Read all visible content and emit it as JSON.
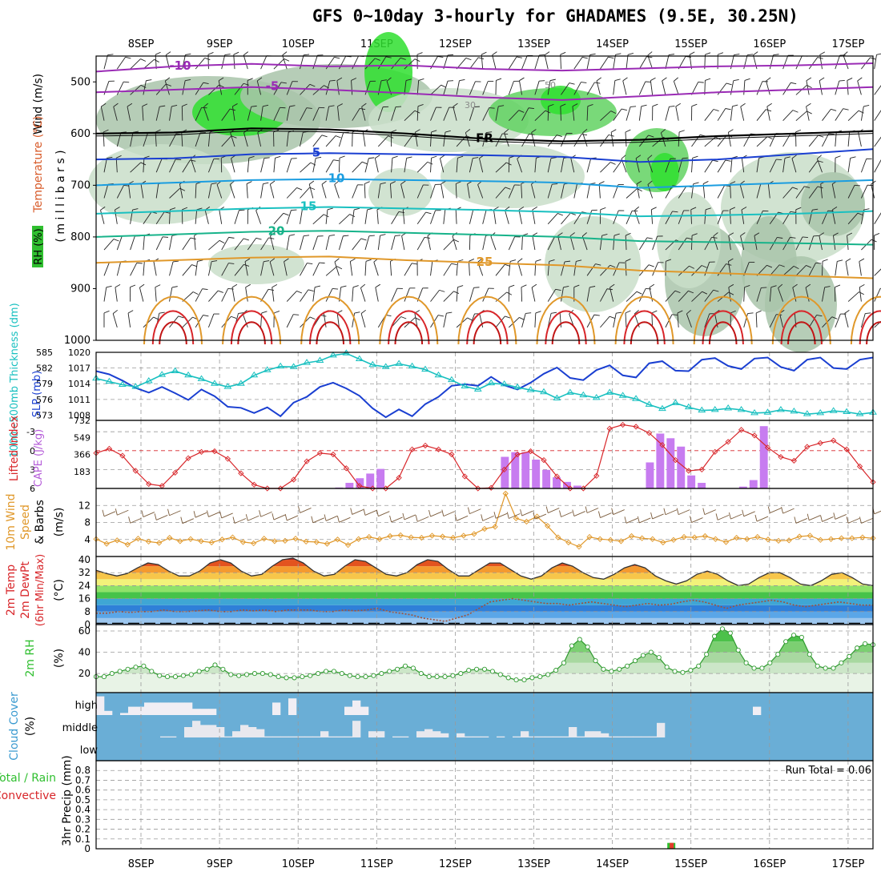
{
  "title": "GFS 0~10day 3-hourly for GHADAMES (9.5E, 30.25N)",
  "dates": [
    "8SEP",
    "9SEP",
    "10SEP",
    "11SEP",
    "12SEP",
    "13SEP",
    "14SEP",
    "15SEP",
    "16SEP",
    "17SEP"
  ],
  "colors": {
    "purple": "#9a2bb5",
    "blue": "#1a3fd1",
    "lightblue": "#1b9de0",
    "cyan": "#19c0c0",
    "teal": "#17b38a",
    "orange": "#e0982a",
    "red": "#d8262a",
    "green": "#2fbf2f",
    "cloud_bg": "#6aaed6",
    "cloud_fill": "#f1eef4",
    "convective": "#e33b2b"
  },
  "chart_data": [
    {
      "panel": "upper-air",
      "type": "contour",
      "ylabel_parts": [
        "RH (%)",
        "Temperature (°C)",
        "Wind (m/s)"
      ],
      "yaxis_label": "( m i l l i b a r s )",
      "ylim": [
        450,
        1000
      ],
      "yticks": [
        "500",
        "600",
        "700",
        "800",
        "900",
        "1000"
      ],
      "isotherms": [
        {
          "label": "-10",
          "level_mb": [
            480,
            470,
            465,
            470,
            468,
            475,
            478,
            474,
            470,
            468,
            464
          ]
        },
        {
          "label": "-5",
          "level_mb": [
            520,
            515,
            510,
            515,
            522,
            530,
            535,
            528,
            520,
            515,
            510
          ]
        },
        {
          "label": "FR",
          "level_mb": [
            600,
            598,
            590,
            592,
            600,
            610,
            615,
            612,
            605,
            600,
            595
          ]
        },
        {
          "label": "5",
          "level_mb": [
            650,
            648,
            640,
            638,
            640,
            642,
            645,
            655,
            650,
            640,
            630
          ]
        },
        {
          "label": "10",
          "level_mb": [
            700,
            695,
            690,
            688,
            690,
            692,
            695,
            705,
            700,
            695,
            690
          ]
        },
        {
          "label": "15",
          "level_mb": [
            755,
            750,
            745,
            742,
            745,
            748,
            752,
            760,
            758,
            755,
            750
          ]
        },
        {
          "label": "20",
          "level_mb": [
            800,
            795,
            790,
            788,
            792,
            796,
            800,
            808,
            810,
            812,
            815
          ]
        },
        {
          "label": "25",
          "level_mb": [
            850,
            845,
            840,
            838,
            845,
            850,
            855,
            865,
            870,
            875,
            880
          ]
        }
      ],
      "rh_labels": [
        "30",
        "50"
      ]
    },
    {
      "panel": "slp-thickness",
      "type": "line",
      "left_ylabel": "1000~500mb Thickness (dm)",
      "right_ylabel": "SLP (mb)",
      "thickness_ticks": [
        "585",
        "582",
        "579",
        "576",
        "573"
      ],
      "slp_ticks": [
        "1020",
        "1017",
        "1014",
        "1011",
        "1008"
      ],
      "series": [
        {
          "name": "SLP",
          "values": [
            1016.4,
            1015.8,
            1014.6,
            1013.2,
            1012.3,
            1013.4,
            1012.2,
            1010.9,
            1012.9,
            1011.6,
            1009.6,
            1009.4,
            1008.4,
            1009.5,
            1007.8,
            1010.4,
            1011.5,
            1013.4,
            1014.2,
            1013.1,
            1011.7,
            1009.3,
            1007.6,
            1009.1,
            1007.8,
            1010.1,
            1011.5,
            1013.6,
            1013.9,
            1013.6,
            1015.3,
            1013.7,
            1012.9,
            1014.2,
            1015.9,
            1017.1,
            1015.1,
            1014.7,
            1016.6,
            1017.5,
            1015.6,
            1015.2,
            1017.9,
            1018.3,
            1016.5,
            1016.4,
            1018.6,
            1018.9,
            1017.4,
            1016.8,
            1018.8,
            1019.0,
            1017.2,
            1016.5,
            1018.6,
            1019.0,
            1017.0,
            1016.8,
            1018.6,
            1019.0
          ]
        },
        {
          "name": "Thickness",
          "values": [
            580.0,
            579.4,
            578.8,
            578.4,
            579.5,
            580.7,
            581.4,
            580.6,
            579.9,
            579.0,
            578.4,
            579.0,
            580.6,
            581.6,
            582.3,
            582.2,
            583.0,
            583.4,
            584.4,
            584.8,
            583.7,
            582.6,
            582.2,
            582.8,
            582.3,
            581.7,
            580.6,
            579.7,
            578.5,
            577.9,
            579.1,
            578.9,
            578.3,
            577.8,
            577.4,
            576.2,
            577.3,
            576.8,
            576.3,
            577.3,
            576.7,
            576.1,
            575.0,
            574.2,
            575.3,
            574.5,
            573.9,
            574.0,
            574.3,
            574.0,
            573.4,
            573.5,
            574.0,
            573.7,
            573.2,
            573.4,
            573.8,
            573.6,
            573.2,
            573.5
          ]
        }
      ]
    },
    {
      "panel": "stability",
      "type": "bar+line",
      "left_ylabel": "Lifted Index",
      "right_ylabel": "CAPE (J/kg)",
      "li_ticks": [
        "-3",
        "0",
        "3",
        "6"
      ],
      "cape_ticks": [
        "732",
        "549",
        "366",
        "183"
      ],
      "lifted_index": [
        0.4,
        -0.3,
        0.8,
        3.2,
        5.3,
        5.6,
        3.5,
        1.2,
        0.2,
        0.1,
        1.3,
        3.6,
        5.4,
        6.7,
        6.9,
        4.6,
        1.7,
        0.4,
        0.6,
        2.8,
        5.6,
        6.6,
        6.2,
        4.3,
        -0.2,
        -0.8,
        -0.2,
        0.6,
        4.1,
        6.2,
        5.9,
        3.0,
        0.6,
        0.1,
        1.5,
        4.1,
        6.0,
        6.8,
        4.0,
        -3.5,
        -4.1,
        -3.8,
        -2.8,
        -0.9,
        1.5,
        3.2,
        3.0,
        0.2,
        -1.4,
        -3.3,
        -2.4,
        -0.5,
        1.0,
        1.6,
        -0.6,
        -1.2,
        -1.6,
        -0.2,
        2.5,
        5.0
      ],
      "cape": [
        0,
        0,
        0,
        0,
        0,
        0,
        0,
        0,
        0,
        0,
        0,
        0,
        0,
        0,
        0,
        0,
        0,
        0,
        0,
        0,
        0,
        0,
        0,
        10,
        60,
        110,
        160,
        210,
        0,
        0,
        0,
        0,
        0,
        0,
        0,
        0,
        0,
        0,
        0,
        340,
        390,
        390,
        310,
        200,
        120,
        70,
        30,
        0,
        0,
        0,
        0,
        0,
        0,
        280,
        590,
        540,
        450,
        140,
        60,
        0,
        0,
        0,
        20,
        90,
        670,
        0,
        0,
        0,
        0,
        0,
        0,
        0,
        0,
        0,
        0
      ]
    },
    {
      "panel": "wind",
      "type": "line",
      "ylabel": "10m Wind Speed & Barbs (m/s)",
      "yticks": [
        "12",
        "8",
        "4"
      ],
      "series": [
        {
          "name": "Speed",
          "values": [
            4.1,
            3.0,
            3.8,
            2.8,
            4.2,
            3.5,
            3.2,
            4.4,
            3.6,
            4.1,
            3.6,
            3.3,
            4.0,
            4.5,
            3.4,
            3.1,
            4.2,
            3.6,
            3.7,
            4.2,
            3.5,
            3.4,
            3.0,
            4.0,
            2.7,
            4.1,
            4.6,
            4.1,
            4.8,
            5.0,
            4.5,
            4.4,
            4.9,
            4.7,
            4.4,
            4.9,
            5.3,
            6.5,
            7.0,
            14.8,
            9.0,
            8.2,
            9.4,
            7.2,
            4.5,
            3.3,
            2.3,
            4.6,
            4.1,
            3.9,
            3.6,
            4.8,
            4.3,
            4.1,
            3.3,
            3.9,
            4.6,
            4.5,
            4.8,
            4.1,
            3.4,
            4.4,
            4.1,
            4.6,
            4.0,
            3.7,
            3.8,
            4.7,
            4.9,
            3.9,
            4.1,
            4.3,
            4.3,
            4.5,
            4.3
          ]
        }
      ]
    },
    {
      "panel": "temperature",
      "type": "area",
      "ylabel": "2m Temp 2m DewPt (6hr Min/Max) (°C)",
      "yticks": [
        "40",
        "32",
        "24",
        "16",
        "8",
        "0"
      ],
      "temp": [
        33.5,
        31.5,
        30,
        31.5,
        35,
        38,
        37,
        33,
        30,
        30,
        33,
        38,
        40,
        38,
        33,
        30,
        31,
        36,
        40,
        41,
        38,
        33,
        30,
        31,
        36,
        40,
        39,
        35,
        31,
        30,
        32,
        37,
        40,
        39,
        34,
        30,
        30,
        34,
        38,
        38,
        34,
        30,
        28,
        30,
        35,
        38,
        36,
        32,
        29,
        28,
        31,
        35,
        37,
        35,
        30,
        27,
        25,
        27,
        31,
        33,
        31,
        27,
        24,
        25,
        29,
        32,
        32,
        29,
        25,
        24,
        27,
        31,
        32,
        29,
        25,
        24
      ],
      "dewpt": [
        7,
        7,
        8,
        7.5,
        8,
        8,
        9,
        8,
        8,
        8.5,
        9,
        8,
        8,
        9,
        8.5,
        9,
        8,
        9,
        9,
        9,
        8,
        8,
        9,
        8.5,
        9,
        10,
        8,
        7,
        6,
        4,
        3,
        2,
        4,
        6,
        10,
        14,
        15,
        16,
        15,
        14,
        13,
        13,
        12,
        13,
        14,
        13,
        12,
        11,
        12,
        13,
        12,
        12.5,
        14,
        15,
        14,
        12,
        10,
        12,
        13,
        14,
        15,
        14,
        12,
        11,
        12,
        13,
        14,
        13,
        12,
        12
      ]
    },
    {
      "panel": "rh",
      "type": "area",
      "ylabel": "2m RH (%)",
      "yticks": [
        "60",
        "40",
        "20"
      ],
      "values": [
        17,
        17,
        20,
        22,
        24,
        26,
        27,
        22,
        18,
        17,
        17,
        18,
        19,
        22,
        24,
        28,
        24,
        19,
        18,
        19,
        20,
        20,
        19,
        17,
        16,
        16,
        17,
        18,
        20,
        22,
        22,
        20,
        18,
        17,
        17,
        18,
        20,
        22,
        24,
        27,
        25,
        20,
        17,
        17,
        17,
        18,
        20,
        23,
        24,
        24,
        22,
        19,
        16,
        14,
        14,
        16,
        17,
        19,
        23,
        30,
        46,
        52,
        45,
        32,
        24,
        22,
        24,
        27,
        32,
        37,
        40,
        35,
        26,
        22,
        21,
        23,
        27,
        38,
        55,
        62,
        58,
        42,
        30,
        25,
        25,
        30,
        38,
        50,
        56,
        54,
        38,
        27,
        25,
        25,
        30,
        36,
        44,
        48,
        47
      ]
    },
    {
      "panel": "cloud",
      "type": "heatmap",
      "ylabel": "Cloud Cover (%)",
      "rows": [
        "high",
        "middle",
        "low"
      ],
      "high": [
        90,
        20,
        0,
        10,
        40,
        40,
        60,
        60,
        60,
        60,
        60,
        60,
        30,
        30,
        30,
        0,
        0,
        0,
        0,
        0,
        0,
        0,
        60,
        0,
        80,
        0,
        0,
        0,
        0,
        0,
        0,
        40,
        70,
        40,
        0,
        0,
        0,
        0,
        0,
        0,
        0,
        0,
        0,
        0,
        0,
        0,
        0,
        0,
        0,
        0,
        0,
        0,
        0,
        0,
        0,
        0,
        0,
        0,
        0,
        0,
        0,
        0,
        0,
        0,
        0,
        0,
        0,
        0,
        0,
        0,
        0,
        0,
        0,
        0,
        0,
        0,
        0,
        0,
        0,
        0,
        0,
        0,
        40,
        0,
        0,
        0,
        0,
        0,
        0,
        0,
        0,
        0,
        0,
        0,
        0,
        0,
        0
      ],
      "middle": [
        0,
        0,
        0,
        0,
        0,
        0,
        0,
        0,
        5,
        5,
        0,
        50,
        80,
        60,
        60,
        50,
        5,
        30,
        60,
        50,
        40,
        5,
        5,
        5,
        5,
        5,
        5,
        5,
        30,
        5,
        5,
        5,
        80,
        0,
        30,
        30,
        0,
        5,
        5,
        0,
        30,
        40,
        30,
        20,
        0,
        20,
        5,
        5,
        5,
        0,
        5,
        0,
        5,
        30,
        5,
        5,
        5,
        5,
        5,
        50,
        5,
        30,
        30,
        20,
        5,
        5,
        5,
        5,
        5,
        5,
        70,
        0,
        0,
        0,
        0,
        0,
        0,
        0,
        0,
        0,
        0,
        0,
        0,
        0,
        0,
        0,
        0,
        0,
        0,
        0,
        0,
        0,
        0,
        0,
        0,
        0,
        0
      ],
      "low": [
        0,
        0,
        0,
        0,
        0,
        0,
        0,
        0,
        0,
        0,
        0,
        0,
        0,
        0,
        0,
        0,
        0,
        0,
        0,
        0,
        0,
        0,
        0,
        0,
        0,
        0,
        0,
        0,
        0,
        0,
        0,
        0,
        0,
        0,
        0,
        0,
        0,
        0,
        0,
        0,
        0,
        0,
        0,
        0,
        0,
        0,
        0,
        0,
        0,
        0,
        0,
        0,
        0,
        0,
        0,
        0,
        0,
        0,
        0,
        0,
        0,
        0,
        0,
        0,
        0,
        0,
        0,
        0,
        0,
        0,
        0,
        0,
        0,
        0,
        0,
        0,
        0,
        0,
        0,
        0,
        0,
        0,
        0,
        0,
        0,
        0,
        0,
        0,
        0,
        0,
        0,
        0,
        0,
        0,
        0,
        0,
        0
      ]
    },
    {
      "panel": "precip",
      "type": "bar",
      "ylabel": "3hr Precip (mm)",
      "left_label_1": "Total / Rain",
      "left_label_2": "Convective",
      "annotation": "Run Total = 0.06",
      "yticks": [
        "0.8",
        "0.7",
        "0.6",
        "0.5",
        "0.4",
        "0.3",
        "0.2",
        "0.1",
        "0"
      ],
      "values": [
        {
          "date_index": 6.75,
          "total": 0.06,
          "convective": 0.06
        }
      ]
    }
  ]
}
